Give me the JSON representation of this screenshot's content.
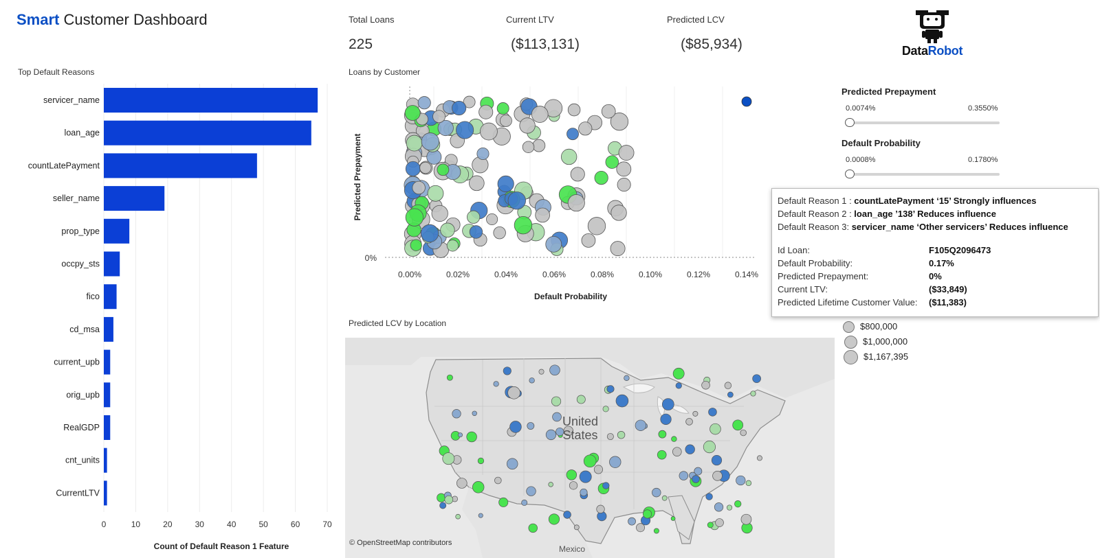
{
  "header": {
    "title_accent": "Smart",
    "title_rest": " Customer Dashboard",
    "logo_part1": "Data",
    "logo_part2": "Robot",
    "logo_icon": "robot-icon"
  },
  "kpis": [
    {
      "label": "Total Loans",
      "value": "225"
    },
    {
      "label": "Current LTV",
      "value": "($113,131)"
    },
    {
      "label": "Predicted LCV",
      "value": "($85,934)"
    }
  ],
  "colors": {
    "accent": "#0b4fc4",
    "bar": "#0b3fd6",
    "dot_gray": "#c2c2c2",
    "dot_green_dark": "#49e34f",
    "dot_green_light": "#a9dba9",
    "dot_blue": "#3f7cc9",
    "dot_blue_light": "#8aa9cf"
  },
  "bar_chart": {
    "section_label": "Top Default Reasons",
    "chart_data": {
      "type": "bar",
      "orientation": "horizontal",
      "title": "Top Default Reasons",
      "xlabel": "Count of Default Reason  1 Feature",
      "ylabel": "",
      "categories": [
        "servicer_name",
        "loan_age",
        "countLatePayment",
        "seller_name",
        "prop_type",
        "occpy_sts",
        "fico",
        "cd_msa",
        "current_upb",
        "orig_upb",
        "RealGDP",
        "cnt_units",
        "CurrentLTV"
      ],
      "values": [
        67,
        65,
        48,
        19,
        8,
        5,
        4,
        3,
        2,
        2,
        2,
        1,
        1
      ],
      "xlim": [
        0,
        70
      ],
      "xticks": [
        "0",
        "10",
        "20",
        "30",
        "40",
        "50",
        "60",
        "70"
      ],
      "grid": true
    }
  },
  "scatter_chart": {
    "section_label": "Loans by Customer",
    "chart_data": {
      "type": "scatter",
      "title": "Loans by Customer",
      "xlabel": "Default Probability",
      "ylabel": "Predicted Prepayment",
      "xticks": [
        "0.00%",
        "0.02%",
        "0.04%",
        "0.06%",
        "0.08%",
        "0.10%",
        "0.12%",
        "0.14%"
      ],
      "yticks": [
        "0%"
      ],
      "xlim": [
        -0.0009,
        0.16
      ],
      "grid": true
    }
  },
  "filters": [
    {
      "title": "Predicted Prepayment",
      "min": "0.0074%",
      "max": "0.3550%"
    },
    {
      "title": "Default Probability",
      "min": "0.0008%",
      "max": "0.1780%"
    }
  ],
  "tooltip": {
    "reasons": [
      {
        "prefix": "Default Reason 1 : ",
        "feature": "countLatePayment  ‘15’  Strongly influences"
      },
      {
        "prefix": "Default Reason 2 : ",
        "feature": "loan_age  ’138’  Reduces influence"
      },
      {
        "prefix": "Default Reason 3:  ",
        "feature": "servicer_name  ‘Other servicers’  Reduces influence"
      }
    ],
    "fields": [
      {
        "key": "Id Loan:",
        "value": "F105Q2096473"
      },
      {
        "key": "Default Probability:",
        "value": "0.17%"
      },
      {
        "key": "Predicted Prepayment:",
        "value": "0%"
      },
      {
        "key": "Current LTV:",
        "value": "($33,849)"
      },
      {
        "key": "Predicted Lifetime Customer Value:",
        "value": "($11,383)"
      }
    ]
  },
  "size_legend": [
    "$800,000",
    "$1,000,000",
    "$1,167,395"
  ],
  "map": {
    "section_label": "Predicted LCV by Location",
    "country_label_1": "United",
    "country_label_2": "States",
    "neighbor_label": "Mexico",
    "attribution": "© OpenStreetMap contributors"
  }
}
